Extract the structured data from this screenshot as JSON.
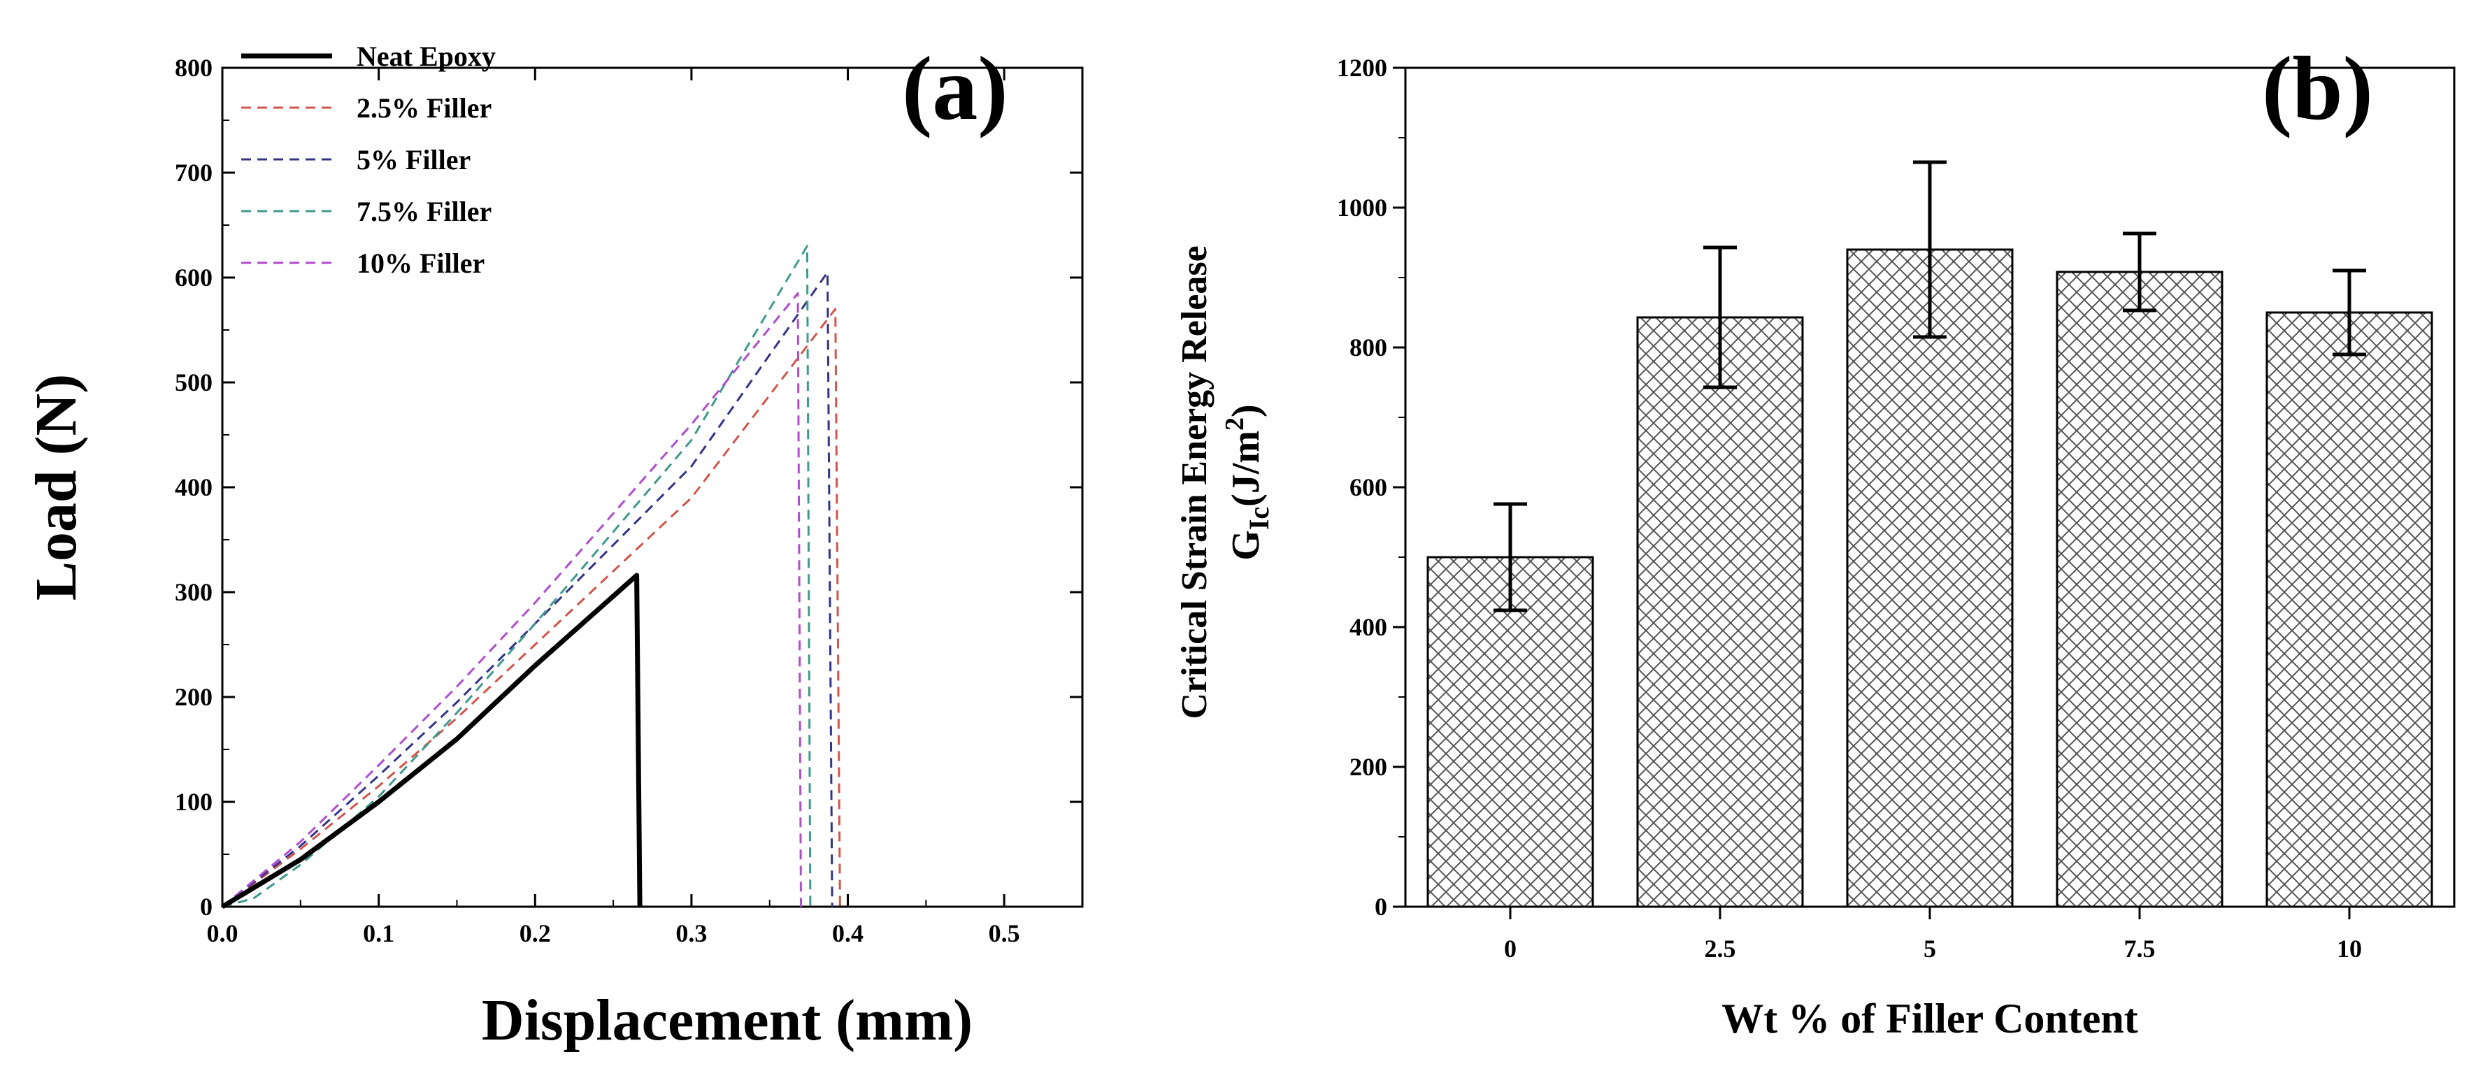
{
  "chart_data": [
    {
      "type": "line",
      "panel_label": "(a)",
      "xlabel": "Displacement (mm)",
      "ylabel": "Load (N)",
      "xlim": [
        0.0,
        0.55
      ],
      "ylim": [
        0,
        800
      ],
      "x_ticks": [
        "0.0",
        "0.1",
        "0.2",
        "0.3",
        "0.4",
        "0.5"
      ],
      "y_ticks": [
        "0",
        "100",
        "200",
        "300",
        "400",
        "500",
        "600",
        "700",
        "800"
      ],
      "legend_position": "top-left",
      "series": [
        {
          "name": "Neat Epoxy",
          "color": "#000000",
          "style": "solid",
          "points": [
            [
              0,
              0
            ],
            [
              0.05,
              45
            ],
            [
              0.1,
              100
            ],
            [
              0.15,
              160
            ],
            [
              0.2,
              230
            ],
            [
              0.265,
              316
            ],
            [
              0.267,
              0
            ]
          ]
        },
        {
          "name": "2.5% Filler",
          "color": "#d0554a",
          "style": "dashed",
          "points": [
            [
              0,
              0
            ],
            [
              0.05,
              55
            ],
            [
              0.1,
              115
            ],
            [
              0.15,
              180
            ],
            [
              0.2,
              250
            ],
            [
              0.3,
              390
            ],
            [
              0.392,
              570
            ],
            [
              0.395,
              0
            ]
          ]
        },
        {
          "name": "5% Filler",
          "color": "#33338a",
          "style": "dashed",
          "points": [
            [
              0,
              0
            ],
            [
              0.05,
              58
            ],
            [
              0.1,
              125
            ],
            [
              0.15,
              195
            ],
            [
              0.2,
              270
            ],
            [
              0.3,
              420
            ],
            [
              0.387,
              605
            ],
            [
              0.39,
              0
            ]
          ]
        },
        {
          "name": "7.5% Filler",
          "color": "#3e9a8c",
          "style": "dashed",
          "points": [
            [
              0,
              0
            ],
            [
              0.02,
              8
            ],
            [
              0.05,
              40
            ],
            [
              0.1,
              105
            ],
            [
              0.15,
              185
            ],
            [
              0.2,
              270
            ],
            [
              0.3,
              445
            ],
            [
              0.374,
              630
            ],
            [
              0.376,
              0
            ]
          ]
        },
        {
          "name": "10% Filler",
          "color": "#b04dcf",
          "style": "dashed",
          "points": [
            [
              0,
              0
            ],
            [
              0.05,
              62
            ],
            [
              0.1,
              135
            ],
            [
              0.15,
              210
            ],
            [
              0.2,
              290
            ],
            [
              0.3,
              460
            ],
            [
              0.368,
              585
            ],
            [
              0.37,
              0
            ]
          ]
        }
      ]
    },
    {
      "type": "bar",
      "panel_label": "(b)",
      "xlabel": "Wt % of Filler Content",
      "ylabel_line1": "Critical Strain Energy Release",
      "ylabel_line2_prefix": "G",
      "ylabel_line2_sub": "Ic",
      "ylabel_line2_mid": "(J/m",
      "ylabel_line2_sup": "2",
      "ylabel_line2_end": ")",
      "ylim": [
        0,
        1200
      ],
      "y_ticks": [
        "0",
        "200",
        "400",
        "600",
        "800",
        "1000",
        "1200"
      ],
      "categories": [
        "0",
        "2.5",
        "5",
        "7.5",
        "10"
      ],
      "values": [
        500,
        843,
        940,
        908,
        850
      ],
      "errors": [
        76,
        100,
        125,
        55,
        60
      ],
      "pattern": "crosshatch"
    }
  ]
}
